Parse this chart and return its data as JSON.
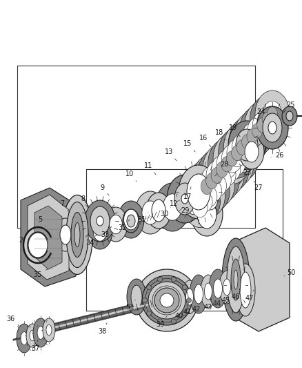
{
  "bg_color": "#ffffff",
  "fig_width": 4.39,
  "fig_height": 5.33,
  "dpi": 100,
  "lc": "#1a1a1a",
  "pc": "#888888",
  "pl": "#cccccc",
  "pd": "#444444",
  "pm": "#666666"
}
